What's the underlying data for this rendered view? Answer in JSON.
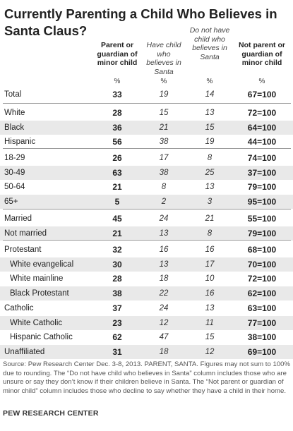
{
  "chart_data": {
    "type": "table",
    "title": "Currently Parenting a Child Who Believes in Santa Claus?",
    "columns": [
      {
        "label": "Parent or guardian of minor child",
        "unit": "%"
      },
      {
        "label": "Have child who believes in Santa",
        "unit": "%"
      },
      {
        "label": "Do not have child who believes in Santa",
        "unit": "%"
      },
      {
        "label": "Not parent or guardian of minor child",
        "unit": "%"
      }
    ],
    "groups": [
      {
        "rows": [
          {
            "label": "Total",
            "values": [
              "33",
              "19",
              "14",
              "67=100"
            ]
          }
        ]
      },
      {
        "rows": [
          {
            "label": "White",
            "values": [
              "28",
              "15",
              "13",
              "72=100"
            ]
          },
          {
            "label": "Black",
            "values": [
              "36",
              "21",
              "15",
              "64=100"
            ]
          },
          {
            "label": "Hispanic",
            "values": [
              "56",
              "38",
              "19",
              "44=100"
            ]
          }
        ]
      },
      {
        "rows": [
          {
            "label": "18-29",
            "values": [
              "26",
              "17",
              "8",
              "74=100"
            ]
          },
          {
            "label": "30-49",
            "values": [
              "63",
              "38",
              "25",
              "37=100"
            ]
          },
          {
            "label": "50-64",
            "values": [
              "21",
              "8",
              "13",
              "79=100"
            ]
          },
          {
            "label": "65+",
            "values": [
              "5",
              "2",
              "3",
              "95=100"
            ]
          }
        ]
      },
      {
        "rows": [
          {
            "label": "Married",
            "values": [
              "45",
              "24",
              "21",
              "55=100"
            ]
          },
          {
            "label": "Not married",
            "values": [
              "21",
              "13",
              "8",
              "79=100"
            ]
          }
        ]
      },
      {
        "rows": [
          {
            "label": "Protestant",
            "values": [
              "32",
              "16",
              "16",
              "68=100"
            ]
          },
          {
            "label": "White evangelical",
            "indent": true,
            "values": [
              "30",
              "13",
              "17",
              "70=100"
            ]
          },
          {
            "label": "White mainline",
            "indent": true,
            "values": [
              "28",
              "18",
              "10",
              "72=100"
            ]
          },
          {
            "label": "Black Protestant",
            "indent": true,
            "values": [
              "38",
              "22",
              "16",
              "62=100"
            ]
          },
          {
            "label": "Catholic",
            "values": [
              "37",
              "24",
              "13",
              "63=100"
            ]
          },
          {
            "label": "White Catholic",
            "indent": true,
            "values": [
              "23",
              "12",
              "11",
              "77=100"
            ]
          },
          {
            "label": "Hispanic Catholic",
            "indent": true,
            "values": [
              "62",
              "47",
              "15",
              "38=100"
            ]
          },
          {
            "label": "Unaffiliated",
            "values": [
              "31",
              "18",
              "12",
              "69=100"
            ]
          }
        ]
      }
    ]
  },
  "note": "Source: Pew Research Center Dec. 3-8, 2013. PARENT, SANTA. Figures may not sum to 100% due to rounding. The “Do not have child who believes in Santa” column includes those who are unsure or say they don’t know if their children believe in Santa. The “Not parent or guardian of minor child” column includes those who decline to say whether they have a child in their home.",
  "source": "PEW RESEARCH CENTER",
  "colors": {
    "shade": "#e9e9e9",
    "divider": "#9a9a9a",
    "text": "#222222"
  }
}
